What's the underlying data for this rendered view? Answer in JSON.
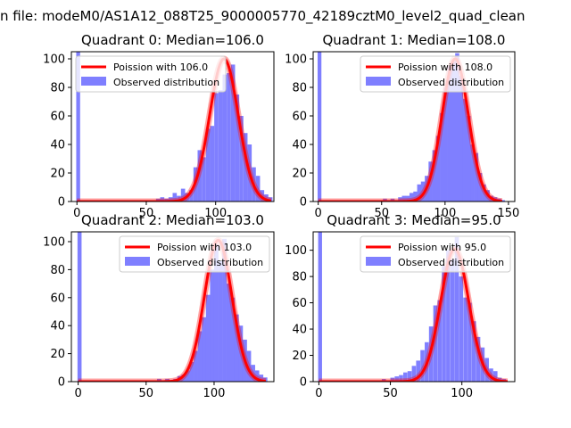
{
  "figure": {
    "suptitle": "n file: modeM0/AS1A12_088T25_9000005770_42189cztM0_level2_quad_clean",
    "colors": {
      "poisson": "#ff0000",
      "hist": "#7f7fff",
      "axes": "#000000"
    }
  },
  "chart_data": [
    {
      "type": "bar",
      "title": "Quadrant 0: Median=106.0",
      "median": 106.0,
      "xlim": [
        -4,
        142
      ],
      "ylim": [
        0,
        105
      ],
      "xticks": [
        0,
        50,
        100
      ],
      "yticks": [
        0,
        20,
        40,
        60,
        80,
        100
      ],
      "legend": {
        "position": "upper-left",
        "entries": [
          "Poission with 106.0",
          "Observed distribution"
        ]
      },
      "hist": {
        "bin_width": 2.8,
        "zero_bar": 105,
        "bins": [
          [
            57,
            2
          ],
          [
            60,
            3
          ],
          [
            63,
            2
          ],
          [
            66,
            3
          ],
          [
            69,
            6
          ],
          [
            72,
            4
          ],
          [
            75,
            9
          ],
          [
            78,
            6
          ],
          [
            81,
            8
          ],
          [
            84,
            24
          ],
          [
            87,
            36
          ],
          [
            90,
            31
          ],
          [
            93,
            51
          ],
          [
            96,
            53
          ],
          [
            99,
            76
          ],
          [
            102,
            78
          ],
          [
            105,
            89
          ],
          [
            108,
            90
          ],
          [
            111,
            96
          ],
          [
            114,
            75
          ],
          [
            117,
            60
          ],
          [
            120,
            48
          ],
          [
            123,
            40
          ],
          [
            126,
            24
          ],
          [
            129,
            18
          ],
          [
            132,
            8
          ],
          [
            135,
            5
          ],
          [
            138,
            3
          ]
        ]
      },
      "poisson": {
        "peak": 100,
        "sigma": 10.3,
        "xmax": 140
      }
    },
    {
      "type": "bar",
      "title": "Quadrant 1: Median=108.0",
      "median": 108.0,
      "xlim": [
        -4,
        155
      ],
      "ylim": [
        0,
        105
      ],
      "xticks": [
        0,
        50,
        100,
        150
      ],
      "yticks": [
        0,
        20,
        40,
        60,
        80,
        100
      ],
      "legend": {
        "position": "upper-right",
        "entries": [
          "Poission with 108.0",
          "Observed distribution"
        ]
      },
      "hist": {
        "bin_width": 3.0,
        "zero_bar": 105,
        "bins": [
          [
            51,
            2
          ],
          [
            54,
            1
          ],
          [
            57,
            2
          ],
          [
            60,
            1
          ],
          [
            63,
            3
          ],
          [
            66,
            4
          ],
          [
            69,
            4
          ],
          [
            72,
            6
          ],
          [
            75,
            7
          ],
          [
            78,
            12
          ],
          [
            81,
            14
          ],
          [
            84,
            18
          ],
          [
            87,
            28
          ],
          [
            90,
            36
          ],
          [
            93,
            46
          ],
          [
            96,
            62
          ],
          [
            99,
            80
          ],
          [
            102,
            95
          ],
          [
            105,
            98
          ],
          [
            108,
            104
          ],
          [
            111,
            88
          ],
          [
            114,
            72
          ],
          [
            117,
            60
          ],
          [
            120,
            40
          ],
          [
            123,
            34
          ],
          [
            126,
            20
          ],
          [
            129,
            12
          ],
          [
            132,
            8
          ],
          [
            135,
            4
          ],
          [
            138,
            3
          ],
          [
            141,
            2
          ],
          [
            144,
            1
          ]
        ]
      },
      "poisson": {
        "peak": 100,
        "sigma": 10.4,
        "xmax": 145
      }
    },
    {
      "type": "bar",
      "title": "Quadrant 2: Median=103.0",
      "median": 103.0,
      "xlim": [
        -5,
        144
      ],
      "ylim": [
        0,
        107
      ],
      "xticks": [
        0,
        50,
        100
      ],
      "yticks": [
        0,
        20,
        40,
        60,
        80,
        100
      ],
      "legend": {
        "position": "upper-right",
        "entries": [
          "Poission with 103.0",
          "Observed distribution"
        ]
      },
      "hist": {
        "bin_width": 3.0,
        "zero_bar": 107,
        "bins": [
          [
            58,
            2
          ],
          [
            61,
            1
          ],
          [
            64,
            2
          ],
          [
            67,
            1
          ],
          [
            70,
            2
          ],
          [
            73,
            4
          ],
          [
            76,
            5
          ],
          [
            79,
            8
          ],
          [
            82,
            14
          ],
          [
            85,
            22
          ],
          [
            88,
            36
          ],
          [
            91,
            46
          ],
          [
            94,
            62
          ],
          [
            97,
            80
          ],
          [
            100,
            98
          ],
          [
            103,
            86
          ],
          [
            106,
            102
          ],
          [
            109,
            70
          ],
          [
            112,
            60
          ],
          [
            115,
            48
          ],
          [
            118,
            40
          ],
          [
            121,
            30
          ],
          [
            124,
            22
          ],
          [
            127,
            12
          ],
          [
            130,
            8
          ],
          [
            133,
            5
          ],
          [
            136,
            3
          ]
        ]
      },
      "poisson": {
        "peak": 101,
        "sigma": 10.1,
        "xmax": 138
      }
    },
    {
      "type": "bar",
      "title": "Quadrant 3: Median=95.0",
      "median": 95.0,
      "xlim": [
        -4,
        137
      ],
      "ylim": [
        0,
        114
      ],
      "xticks": [
        0,
        50,
        100
      ],
      "yticks": [
        0,
        20,
        40,
        60,
        80,
        100
      ],
      "legend": {
        "position": "upper-right",
        "entries": [
          "Poission with 95.0",
          "Observed distribution"
        ]
      },
      "hist": {
        "bin_width": 2.7,
        "zero_bar": 114,
        "bins": [
          [
            44,
            2
          ],
          [
            47,
            1
          ],
          [
            50,
            3
          ],
          [
            53,
            4
          ],
          [
            56,
            5
          ],
          [
            59,
            7
          ],
          [
            62,
            8
          ],
          [
            65,
            12
          ],
          [
            68,
            16
          ],
          [
            71,
            24
          ],
          [
            74,
            30
          ],
          [
            77,
            42
          ],
          [
            80,
            58
          ],
          [
            83,
            62
          ],
          [
            86,
            88
          ],
          [
            89,
            100
          ],
          [
            92,
            93
          ],
          [
            95,
            110
          ],
          [
            98,
            80
          ],
          [
            101,
            64
          ],
          [
            104,
            60
          ],
          [
            107,
            46
          ],
          [
            110,
            34
          ],
          [
            113,
            26
          ],
          [
            116,
            18
          ],
          [
            119,
            10
          ],
          [
            122,
            8
          ],
          [
            125,
            3
          ],
          [
            128,
            2
          ]
        ]
      },
      "poisson": {
        "peak": 101,
        "sigma": 9.8,
        "xmax": 132
      }
    }
  ]
}
